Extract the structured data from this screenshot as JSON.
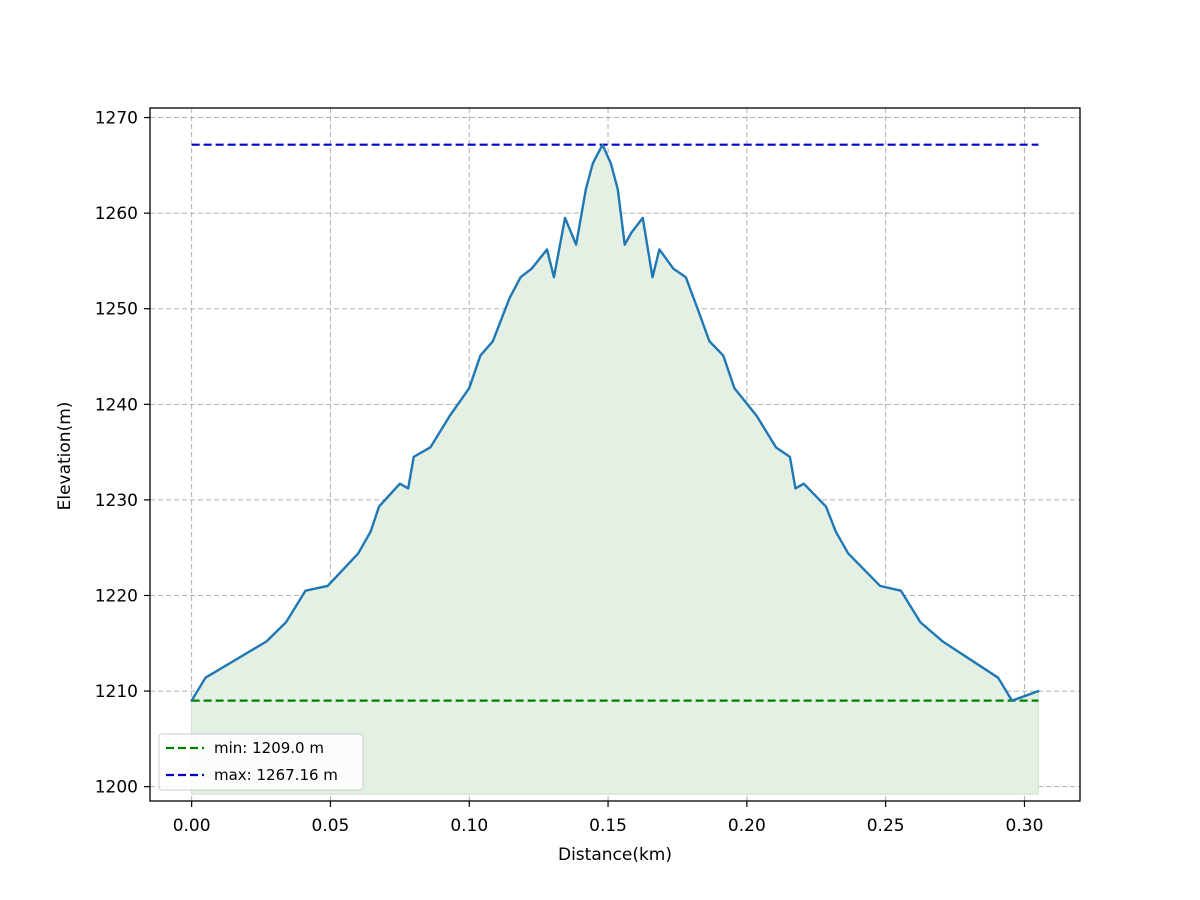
{
  "chart_data": {
    "type": "area",
    "xlabel": "Distance(km)",
    "ylabel": "Elevation(m)",
    "xlim": [
      -0.015,
      0.32
    ],
    "ylim": [
      1198.5,
      1271
    ],
    "xticks": [
      "0.00",
      "0.05",
      "0.10",
      "0.15",
      "0.20",
      "0.25",
      "0.30"
    ],
    "yticks": [
      "1200",
      "1210",
      "1220",
      "1230",
      "1240",
      "1250",
      "1260",
      "1270"
    ],
    "grid": true,
    "legend_position": "lower-left",
    "fill_base": 1199.2,
    "colors": {
      "profile": "#1f77b4",
      "fill": "#e4f0e4",
      "min": "#008000",
      "max": "#0000cc",
      "grid": "#b0b0b0"
    },
    "series": [
      {
        "style": "line",
        "x": [
          0.0,
          0.005,
          0.027,
          0.034,
          0.041,
          0.049,
          0.06,
          0.0645,
          0.0675,
          0.075,
          0.078,
          0.08,
          0.086,
          0.093,
          0.1,
          0.104,
          0.1085,
          0.1145,
          0.1185,
          0.1225,
          0.128,
          0.1305,
          0.1345,
          0.1385,
          0.142,
          0.1445,
          0.148,
          0.151,
          0.1535,
          0.156,
          0.1585,
          0.1625,
          0.166,
          0.1685,
          0.1735,
          0.178,
          0.1825,
          0.1865,
          0.1915,
          0.1955,
          0.2035,
          0.2105,
          0.2155,
          0.2175,
          0.2205,
          0.2285,
          0.232,
          0.2365,
          0.248,
          0.2555,
          0.2625,
          0.2705,
          0.2905,
          0.2955,
          0.305
        ],
        "y": [
          1209.0,
          1211.4,
          1215.2,
          1217.2,
          1220.5,
          1221.0,
          1224.4,
          1226.7,
          1229.3,
          1231.7,
          1231.2,
          1234.5,
          1235.5,
          1238.8,
          1241.7,
          1245.1,
          1246.6,
          1251.1,
          1253.3,
          1254.2,
          1256.2,
          1253.3,
          1259.5,
          1256.7,
          1262.5,
          1265.2,
          1267.16,
          1265.2,
          1262.5,
          1256.7,
          1258.0,
          1259.5,
          1253.3,
          1256.2,
          1254.2,
          1253.3,
          1249.8,
          1246.6,
          1245.1,
          1241.7,
          1238.8,
          1235.5,
          1234.5,
          1231.2,
          1231.7,
          1229.3,
          1226.7,
          1224.4,
          1221.0,
          1220.5,
          1217.2,
          1215.2,
          1211.4,
          1209.0,
          1210.0
        ]
      },
      {
        "name": "min: 1209.0 m",
        "style": "dashed",
        "x": [
          0.0,
          0.305
        ],
        "y": [
          1209.0,
          1209.0
        ]
      },
      {
        "name": "max: 1267.16 m",
        "style": "dashed",
        "x": [
          0.0,
          0.305
        ],
        "y": [
          1267.16,
          1267.16
        ]
      }
    ]
  }
}
